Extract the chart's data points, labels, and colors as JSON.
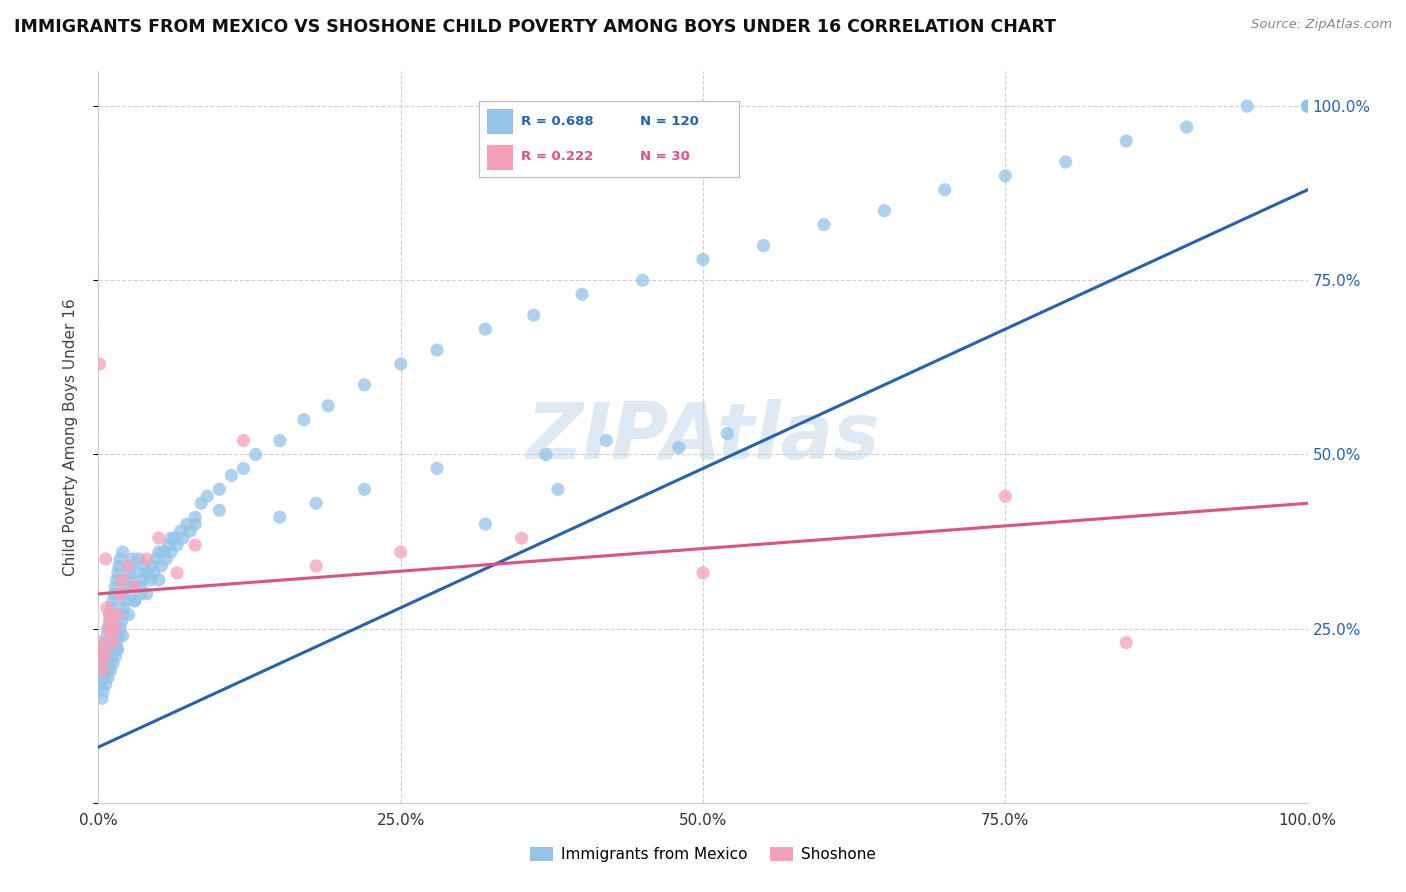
{
  "title": "IMMIGRANTS FROM MEXICO VS SHOSHONE CHILD POVERTY AMONG BOYS UNDER 16 CORRELATION CHART",
  "source": "Source: ZipAtlas.com",
  "ylabel": "Child Poverty Among Boys Under 16",
  "legend_label_1": "Immigrants from Mexico",
  "legend_label_2": "Shoshone",
  "R1": 0.688,
  "N1": 120,
  "R2": 0.222,
  "N2": 30,
  "color_blue": "#93c4e8",
  "color_pink": "#f5a0b8",
  "line_color_blue": "#2563b0",
  "line_color_pink": "#e05080",
  "background_color": "#ffffff",
  "watermark": "ZIPAtlas",
  "blue_x": [
    0.001,
    0.002,
    0.003,
    0.003,
    0.004,
    0.004,
    0.005,
    0.005,
    0.006,
    0.006,
    0.007,
    0.007,
    0.008,
    0.008,
    0.009,
    0.009,
    0.01,
    0.01,
    0.011,
    0.011,
    0.012,
    0.012,
    0.013,
    0.013,
    0.014,
    0.014,
    0.015,
    0.015,
    0.016,
    0.016,
    0.017,
    0.017,
    0.018,
    0.018,
    0.019,
    0.02,
    0.02,
    0.021,
    0.022,
    0.023,
    0.024,
    0.025,
    0.026,
    0.027,
    0.028,
    0.03,
    0.031,
    0.032,
    0.033,
    0.035,
    0.036,
    0.038,
    0.04,
    0.041,
    0.043,
    0.044,
    0.046,
    0.048,
    0.05,
    0.052,
    0.054,
    0.056,
    0.058,
    0.06,
    0.063,
    0.065,
    0.068,
    0.07,
    0.073,
    0.076,
    0.08,
    0.085,
    0.09,
    0.1,
    0.11,
    0.12,
    0.13,
    0.15,
    0.17,
    0.19,
    0.22,
    0.25,
    0.28,
    0.32,
    0.36,
    0.4,
    0.45,
    0.5,
    0.55,
    0.6,
    0.65,
    0.7,
    0.75,
    0.8,
    0.85,
    0.9,
    0.95,
    1.0,
    1.0,
    1.0,
    0.37,
    0.42,
    0.48,
    0.52,
    0.38,
    0.28,
    0.32,
    0.22,
    0.18,
    0.15,
    0.1,
    0.08,
    0.06,
    0.05,
    0.04,
    0.035,
    0.03,
    0.025,
    0.02,
    0.015
  ],
  "blue_y": [
    0.17,
    0.19,
    0.15,
    0.21,
    0.16,
    0.2,
    0.18,
    0.22,
    0.17,
    0.23,
    0.19,
    0.24,
    0.18,
    0.25,
    0.2,
    0.26,
    0.19,
    0.27,
    0.21,
    0.28,
    0.2,
    0.29,
    0.22,
    0.3,
    0.21,
    0.31,
    0.23,
    0.32,
    0.22,
    0.33,
    0.24,
    0.34,
    0.25,
    0.35,
    0.26,
    0.27,
    0.36,
    0.28,
    0.29,
    0.3,
    0.31,
    0.32,
    0.33,
    0.34,
    0.35,
    0.29,
    0.31,
    0.33,
    0.35,
    0.3,
    0.32,
    0.34,
    0.3,
    0.33,
    0.32,
    0.34,
    0.33,
    0.35,
    0.32,
    0.34,
    0.36,
    0.35,
    0.37,
    0.36,
    0.38,
    0.37,
    0.39,
    0.38,
    0.4,
    0.39,
    0.41,
    0.43,
    0.44,
    0.45,
    0.47,
    0.48,
    0.5,
    0.52,
    0.55,
    0.57,
    0.6,
    0.63,
    0.65,
    0.68,
    0.7,
    0.73,
    0.75,
    0.78,
    0.8,
    0.83,
    0.85,
    0.88,
    0.9,
    0.92,
    0.95,
    0.97,
    1.0,
    1.0,
    1.0,
    1.0,
    0.5,
    0.52,
    0.51,
    0.53,
    0.45,
    0.48,
    0.4,
    0.45,
    0.43,
    0.41,
    0.42,
    0.4,
    0.38,
    0.36,
    0.33,
    0.31,
    0.29,
    0.27,
    0.24,
    0.22
  ],
  "pink_x": [
    0.001,
    0.002,
    0.003,
    0.004,
    0.005,
    0.006,
    0.007,
    0.008,
    0.009,
    0.01,
    0.011,
    0.012,
    0.014,
    0.016,
    0.018,
    0.02,
    0.025,
    0.03,
    0.04,
    0.05,
    0.065,
    0.08,
    0.12,
    0.18,
    0.25,
    0.35,
    0.5,
    0.75,
    0.85,
    0.001
  ],
  "pink_y": [
    0.23,
    0.2,
    0.19,
    0.22,
    0.21,
    0.35,
    0.28,
    0.25,
    0.27,
    0.26,
    0.24,
    0.23,
    0.25,
    0.27,
    0.3,
    0.32,
    0.34,
    0.31,
    0.35,
    0.38,
    0.33,
    0.37,
    0.52,
    0.34,
    0.36,
    0.38,
    0.33,
    0.44,
    0.23,
    0.63
  ],
  "blue_line_x0": 0.0,
  "blue_line_y0": 0.08,
  "blue_line_x1": 1.0,
  "blue_line_y1": 0.88,
  "pink_line_x0": 0.0,
  "pink_line_y0": 0.3,
  "pink_line_x1": 1.0,
  "pink_line_y1": 0.43,
  "xlim": [
    0,
    1
  ],
  "ylim": [
    0.05,
    1.05
  ],
  "x_ticks": [
    0,
    0.25,
    0.5,
    0.75,
    1.0
  ],
  "x_tick_labels": [
    "0.0%",
    "25.0%",
    "50.0%",
    "75.0%",
    "100.0%"
  ],
  "y_ticks": [
    0.0,
    0.25,
    0.5,
    0.75,
    1.0
  ],
  "y_tick_labels_right": [
    "",
    "25.0%",
    "50.0%",
    "75.0%",
    "100.0%"
  ]
}
